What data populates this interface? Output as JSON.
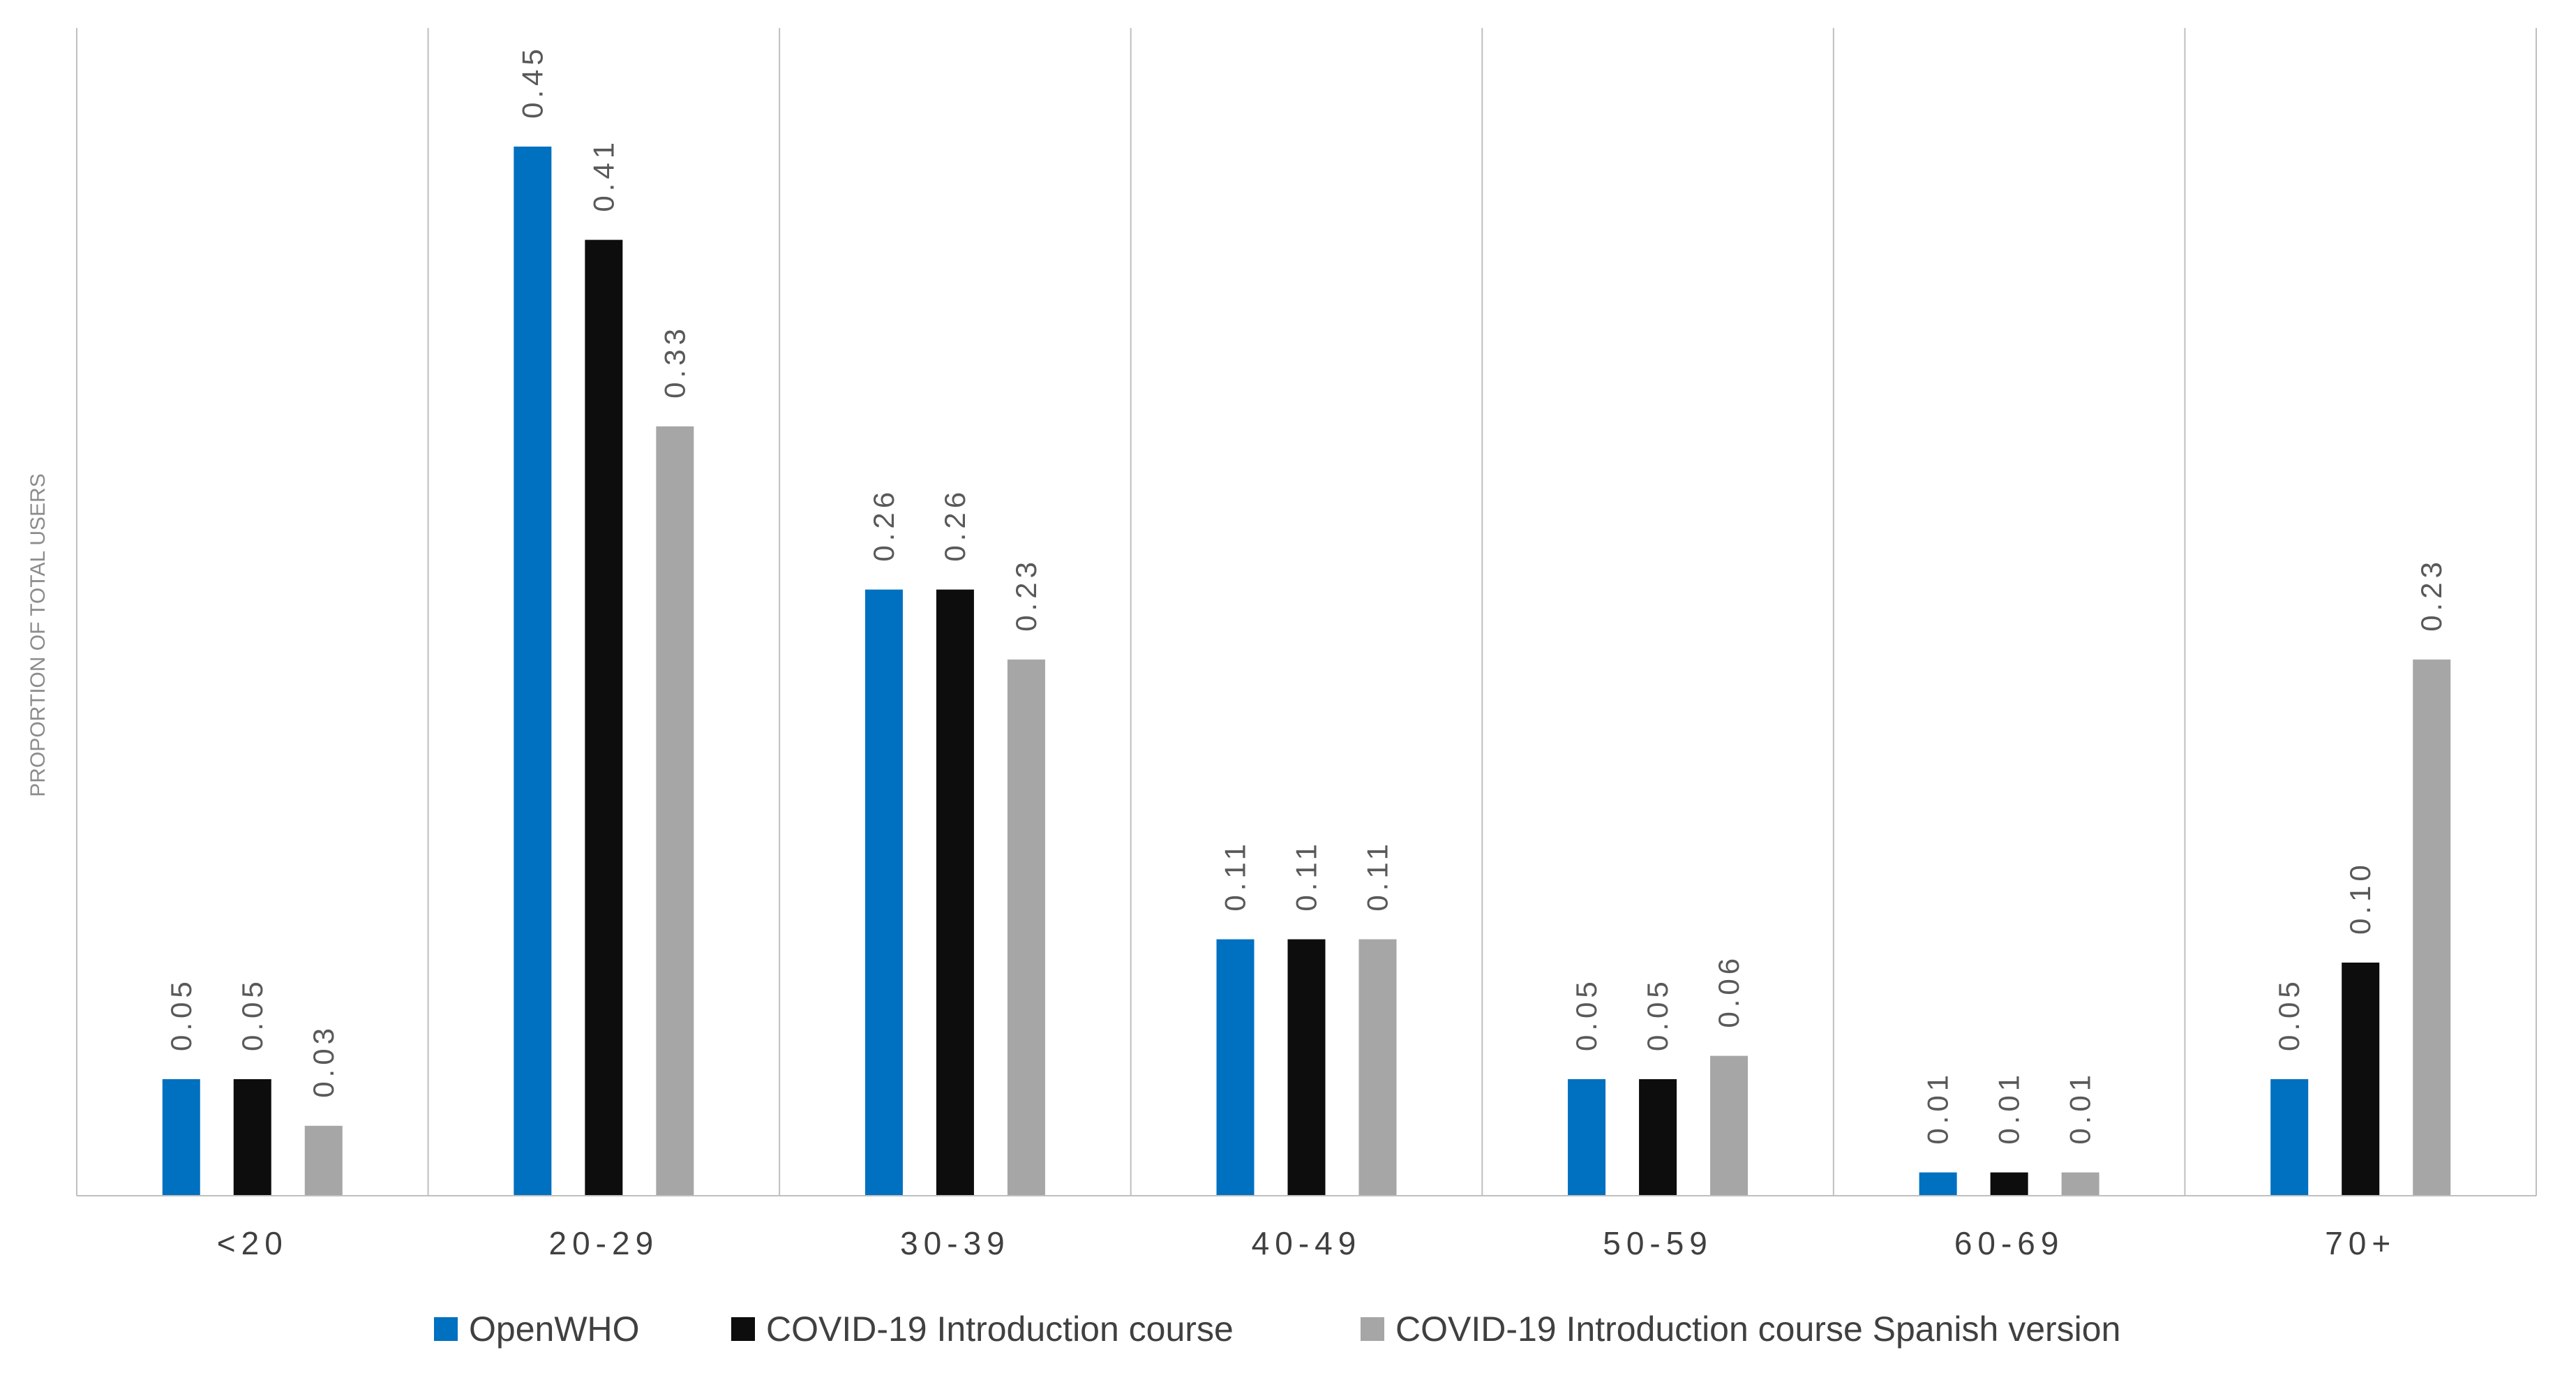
{
  "chart_data": {
    "type": "bar",
    "title": "",
    "xlabel": "",
    "ylabel": "PROPORTION OF TOTAL USERS",
    "ylim": [
      0,
      0.5
    ],
    "categories": [
      "<20",
      "20-29",
      "30-39",
      "40-49",
      "50-59",
      "60-69",
      "70+"
    ],
    "series": [
      {
        "name": "OpenWHO",
        "color": "#0070c0",
        "values": [
          0.05,
          0.45,
          0.26,
          0.11,
          0.05,
          0.01,
          0.05
        ],
        "labels": [
          "0.05",
          "0.45",
          "0.26",
          "0.11",
          "0.05",
          "0.01",
          "0.05"
        ]
      },
      {
        "name": "COVID-19 Introduction course",
        "color": "#0d0d0d",
        "values": [
          0.05,
          0.41,
          0.26,
          0.11,
          0.05,
          0.01,
          0.1
        ],
        "labels": [
          "0.05",
          "0.41",
          "0.26",
          "0.11",
          "0.05",
          "0.01",
          "0.10"
        ]
      },
      {
        "name": "COVID-19 Introduction course Spanish version",
        "color": "#a6a6a6",
        "values": [
          0.03,
          0.33,
          0.23,
          0.11,
          0.06,
          0.01,
          0.23
        ],
        "labels": [
          "0.03",
          "0.33",
          "0.23",
          "0.11",
          "0.06",
          "0.01",
          "0.23"
        ]
      }
    ],
    "grid": false,
    "legend_position": "bottom"
  }
}
